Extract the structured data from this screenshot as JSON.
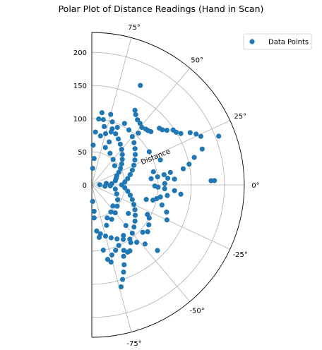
{
  "chart_data": {
    "type": "scatter",
    "projection": "polar",
    "title": "Polar Plot of Distance Readings (Hand in Scan)",
    "radial_label": "Distance",
    "theta_range_deg": [
      -90,
      90
    ],
    "r_range": [
      0,
      230
    ],
    "theta_ticks": [
      {
        "deg": 75,
        "label": "75°"
      },
      {
        "deg": 50,
        "label": "50°"
      },
      {
        "deg": 25,
        "label": "25°"
      },
      {
        "deg": 0,
        "label": "0°"
      },
      {
        "deg": -25,
        "label": "-25°"
      },
      {
        "deg": -50,
        "label": "-50°"
      },
      {
        "deg": -75,
        "label": "-75°"
      }
    ],
    "r_ticks": [
      {
        "value": 0,
        "label": "0"
      },
      {
        "value": 50,
        "label": "50"
      },
      {
        "value": 100,
        "label": "100"
      },
      {
        "value": 150,
        "label": "150"
      },
      {
        "value": 200,
        "label": "200"
      }
    ],
    "grid": true,
    "legend": {
      "position": "top-right",
      "entries": [
        "Data Points"
      ]
    },
    "series": [
      {
        "name": "Data Points",
        "color": "#1f77b4",
        "points": [
          {
            "theta": 64,
            "r": 167
          },
          {
            "theta": 60,
            "r": 130
          },
          {
            "theta": 58,
            "r": 125
          },
          {
            "theta": 55,
            "r": 120
          },
          {
            "theta": 52,
            "r": 118
          },
          {
            "theta": 49,
            "r": 115
          },
          {
            "theta": 46,
            "r": 117
          },
          {
            "theta": 44,
            "r": 118
          },
          {
            "theta": 42,
            "r": 120
          },
          {
            "theta": 40,
            "r": 133
          },
          {
            "theta": 38,
            "r": 135
          },
          {
            "theta": 36,
            "r": 140
          },
          {
            "theta": 34,
            "r": 148
          },
          {
            "theta": 32,
            "r": 150
          },
          {
            "theta": 30,
            "r": 155
          },
          {
            "theta": 28,
            "r": 168
          },
          {
            "theta": 26,
            "r": 175
          },
          {
            "theta": 24,
            "r": 180
          },
          {
            "theta": 21,
            "r": 205
          },
          {
            "theta": 18,
            "r": 175
          },
          {
            "theta": 15,
            "r": 160
          },
          {
            "theta": 12,
            "r": 150
          },
          {
            "theta": 10,
            "r": 140
          },
          {
            "theta": 9,
            "r": 120
          },
          {
            "theta": 8,
            "r": 110
          },
          {
            "theta": 7,
            "r": 100
          },
          {
            "theta": 6,
            "r": 90
          },
          {
            "theta": 5,
            "r": 115
          },
          {
            "theta": 4,
            "r": 125
          },
          {
            "theta": 2,
            "r": 180
          },
          {
            "theta": 2,
            "r": 185
          },
          {
            "theta": 1,
            "r": 110
          },
          {
            "theta": -1,
            "r": 95
          },
          {
            "theta": -2,
            "r": 100
          },
          {
            "theta": -3,
            "r": 110
          },
          {
            "theta": -4,
            "r": 125
          },
          {
            "theta": -6,
            "r": 135
          },
          {
            "theta": -8,
            "r": 115
          },
          {
            "theta": -10,
            "r": 105
          },
          {
            "theta": -12,
            "r": 100
          },
          {
            "theta": -14,
            "r": 95
          },
          {
            "theta": -16,
            "r": 110
          },
          {
            "theta": -20,
            "r": 120
          },
          {
            "theta": -25,
            "r": 125
          },
          {
            "theta": -30,
            "r": 100
          },
          {
            "theta": -35,
            "r": 105
          },
          {
            "theta": -40,
            "r": 110
          },
          {
            "theta": -43,
            "r": 105
          },
          {
            "theta": -45,
            "r": 140
          },
          {
            "theta": -48,
            "r": 120
          },
          {
            "theta": -52,
            "r": 110
          },
          {
            "theta": -56,
            "r": 105
          },
          {
            "theta": -60,
            "r": 115
          },
          {
            "theta": -64,
            "r": 110
          },
          {
            "theta": -66,
            "r": 118
          },
          {
            "theta": -68,
            "r": 130
          },
          {
            "theta": -70,
            "r": 140
          },
          {
            "theta": -72,
            "r": 150
          },
          {
            "theta": -74,
            "r": 160
          },
          {
            "theta": -62,
            "r": 115
          },
          {
            "theta": -66,
            "r": 100
          },
          {
            "theta": -58,
            "r": 90
          },
          {
            "theta": -50,
            "r": 80
          },
          {
            "theta": -70,
            "r": 105
          },
          {
            "theta": -74,
            "r": 110
          },
          {
            "theta": -76,
            "r": 120
          },
          {
            "theta": -78,
            "r": 115
          },
          {
            "theta": -80,
            "r": 100
          },
          {
            "theta": -82,
            "r": 80
          },
          {
            "theta": -84,
            "r": 70
          },
          {
            "theta": -86,
            "r": 50
          },
          {
            "theta": 88,
            "r": 60
          },
          {
            "theta": 86,
            "r": 80
          },
          {
            "theta": 84,
            "r": 100
          },
          {
            "theta": 82,
            "r": 110
          },
          {
            "theta": 80,
            "r": 100
          },
          {
            "theta": 78,
            "r": 90
          },
          {
            "theta": 75,
            "r": 110
          },
          {
            "theta": 72,
            "r": 100
          },
          {
            "theta": 70,
            "r": 85
          },
          {
            "theta": 68,
            "r": 70
          },
          {
            "theta": 66,
            "r": 95
          },
          {
            "theta": 62,
            "r": 105
          },
          {
            "theta": 56,
            "r": 100
          },
          {
            "theta": 50,
            "r": 95
          },
          {
            "theta": 45,
            "r": 90
          },
          {
            "theta": 40,
            "r": 85
          },
          {
            "theta": 35,
            "r": 80
          },
          {
            "theta": 30,
            "r": 75
          },
          {
            "theta": 25,
            "r": 70
          },
          {
            "theta": 20,
            "r": 65
          },
          {
            "theta": 15,
            "r": 60
          },
          {
            "theta": 10,
            "r": 55
          },
          {
            "theta": 5,
            "r": 50
          },
          {
            "theta": 0,
            "r": 45
          },
          {
            "theta": -5,
            "r": 50
          },
          {
            "theta": -10,
            "r": 55
          },
          {
            "theta": -15,
            "r": 60
          },
          {
            "theta": -20,
            "r": 65
          },
          {
            "theta": -25,
            "r": 70
          },
          {
            "theta": -30,
            "r": 75
          },
          {
            "theta": -35,
            "r": 80
          },
          {
            "theta": -40,
            "r": 85
          },
          {
            "theta": -45,
            "r": 90
          },
          {
            "theta": -50,
            "r": 95
          },
          {
            "theta": -55,
            "r": 100
          },
          {
            "theta": -60,
            "r": 95
          },
          {
            "theta": -65,
            "r": 90
          },
          {
            "theta": -70,
            "r": 85
          },
          {
            "theta": -75,
            "r": 80
          },
          {
            "theta": -80,
            "r": 75
          },
          {
            "theta": 80,
            "r": 75
          },
          {
            "theta": 75,
            "r": 80
          },
          {
            "theta": 70,
            "r": 90
          },
          {
            "theta": 65,
            "r": 85
          },
          {
            "theta": 60,
            "r": 80
          },
          {
            "theta": 55,
            "r": 75
          },
          {
            "theta": 50,
            "r": 70
          },
          {
            "theta": 45,
            "r": 65
          },
          {
            "theta": 40,
            "r": 60
          },
          {
            "theta": 35,
            "r": 55
          },
          {
            "theta": 30,
            "r": 50
          },
          {
            "theta": 25,
            "r": 45
          },
          {
            "theta": 20,
            "r": 40
          },
          {
            "theta": 15,
            "r": 38
          },
          {
            "theta": 10,
            "r": 36
          },
          {
            "theta": -10,
            "r": 36
          },
          {
            "theta": -20,
            "r": 40
          },
          {
            "theta": -30,
            "r": 45
          },
          {
            "theta": -40,
            "r": 50
          },
          {
            "theta": -50,
            "r": 55
          },
          {
            "theta": -60,
            "r": 60
          },
          {
            "theta": -70,
            "r": 65
          },
          {
            "theta": 70,
            "r": 60
          },
          {
            "theta": 60,
            "r": 55
          },
          {
            "theta": 50,
            "r": 50
          },
          {
            "theta": 40,
            "r": 45
          },
          {
            "theta": -45,
            "r": 45
          },
          {
            "theta": -55,
            "r": 50
          },
          {
            "theta": -65,
            "r": 55
          },
          {
            "theta": 3,
            "r": 30
          },
          {
            "theta": -3,
            "r": 28
          },
          {
            "theta": 6,
            "r": 22
          },
          {
            "theta": -6,
            "r": 20
          },
          {
            "theta": 1,
            "r": 12
          },
          {
            "theta": 85,
            "r": 40
          },
          {
            "theta": -85,
            "r": 40
          },
          {
            "theta": 87,
            "r": 25
          },
          {
            "theta": -87,
            "r": 25
          },
          {
            "theta": 30,
            "r": 100
          },
          {
            "theta": 20,
            "r": 110
          },
          {
            "theta": -15,
            "r": 85
          },
          {
            "theta": -28,
            "r": 95
          },
          {
            "theta": 12,
            "r": 95
          },
          {
            "theta": 48,
            "r": 105
          },
          {
            "theta": -38,
            "r": 70
          }
        ]
      }
    ]
  }
}
